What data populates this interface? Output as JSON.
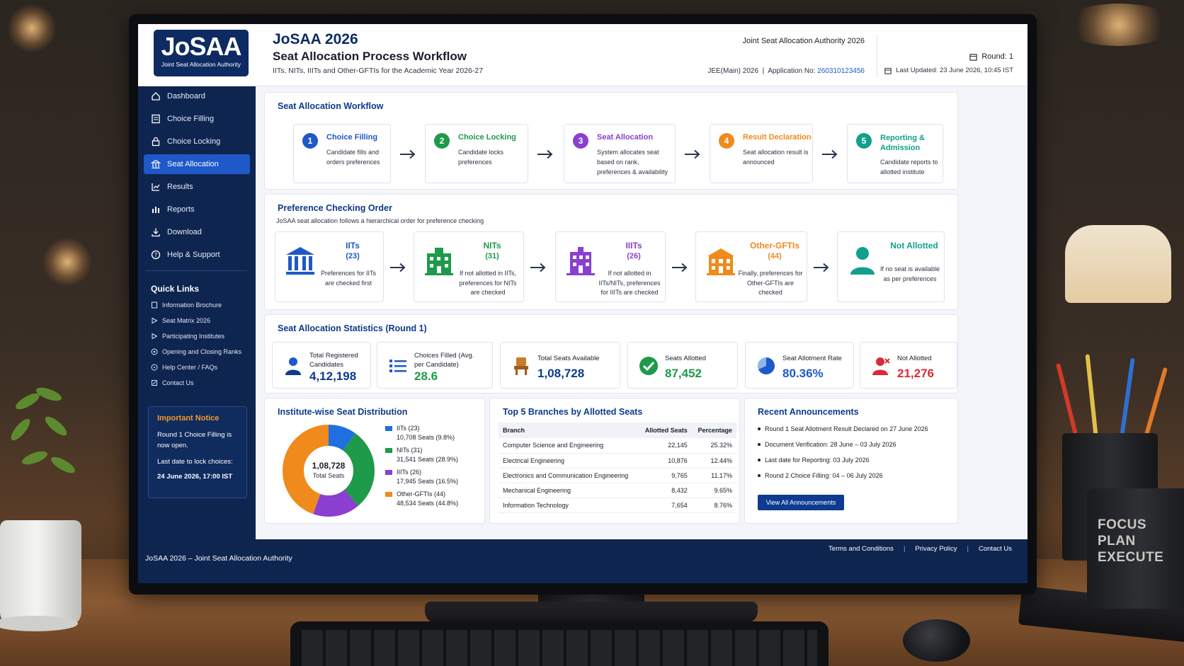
{
  "header": {
    "logo_title": "JoSAA",
    "logo_subtitle": "Joint Seat Allocation Authority",
    "title": "JoSAA 2026",
    "subtitle": "Seat Allocation Process Workflow",
    "description": "IITs, NITs, IIITs and Other-GFTIs for the Academic Year 2026-27",
    "authority": "Joint Seat Allocation Authority 2026",
    "exam_label": "JEE(Main) 2026",
    "app_label": "Application No:",
    "app_number": "260310123456",
    "round": "Round: 1",
    "last_updated": "Last Updated: 23 June 2026, 10:45 IST"
  },
  "sidebar": {
    "items": [
      {
        "label": "Dashboard",
        "icon": "home-icon"
      },
      {
        "label": "Choice Filling",
        "icon": "form-icon"
      },
      {
        "label": "Choice Locking",
        "icon": "lock-icon"
      },
      {
        "label": "Seat Allocation",
        "icon": "building-icon"
      },
      {
        "label": "Results",
        "icon": "chart-icon"
      },
      {
        "label": "Reports",
        "icon": "bar-chart-icon"
      },
      {
        "label": "Download",
        "icon": "download-icon"
      },
      {
        "label": "Help & Support",
        "icon": "help-icon"
      }
    ],
    "active_index": 3,
    "quick_links_title": "Quick Links",
    "quick_links": [
      "Information Brochure",
      "Seat Matrix 2026",
      "Participating Institutes",
      "Opening and Closing Ranks",
      "Help Center / FAQs",
      "Contact Us"
    ],
    "notice": {
      "title": "Important Notice",
      "body": "Round 1 Choice Filling is now open.",
      "deadline_label": "Last date to lock choices:",
      "deadline": "24 June 2026, 17:00 IST"
    }
  },
  "workflow": {
    "title": "Seat Allocation Workflow",
    "steps": [
      {
        "num": "1",
        "title": "Choice Filling",
        "desc": "Candidate fills and orders preferences",
        "color": "#1f58c8"
      },
      {
        "num": "2",
        "title": "Choice Locking",
        "desc": "Candidate locks preferences",
        "color": "#1e9a4a"
      },
      {
        "num": "3",
        "title": "Seat Allocation",
        "desc": "System allocates seat based on rank, preferences & availability",
        "color": "#8a3fd0"
      },
      {
        "num": "4",
        "title": "Result Declaration",
        "desc": "Seat allocation result is announced",
        "color": "#f08a1c"
      },
      {
        "num": "5",
        "title": "Reporting & Admission",
        "desc": "Candidate reports to allotted institute",
        "color": "#12a08c"
      }
    ]
  },
  "preference": {
    "title": "Preference Checking Order",
    "subtitle": "JoSAA seat allocation follows a hierarchical order for preference checking",
    "items": [
      {
        "title": "IITs",
        "count": "(23)",
        "desc": "Preferences for IITs are checked first",
        "color": "#1f58c8"
      },
      {
        "title": "NITs",
        "count": "(31)",
        "desc": "If not allotted in IITs, preferences for NITs are checked",
        "color": "#1e9a4a"
      },
      {
        "title": "IIITs",
        "count": "(26)",
        "desc": "If not allotted in IITs/NITs, preferences for IIITs are checked",
        "color": "#8a3fd0"
      },
      {
        "title": "Other-GFTIs",
        "count": "(44)",
        "desc": "Finally, preferences for Other-GFTIs are checked",
        "color": "#f08a1c"
      },
      {
        "title": "Not Allotted",
        "count": "",
        "desc": "If no seat is available as per preferences",
        "color": "#12a08c"
      }
    ]
  },
  "stats": {
    "title": "Seat Allocation Statistics (Round 1)",
    "items": [
      {
        "label": "Total Registered Candidates",
        "value": "4,12,198",
        "color": "#0d3a8a",
        "icon": "user-icon"
      },
      {
        "label": "Choices Filled (Avg. per Candidate)",
        "value": "28.6",
        "color": "#1e9a4a",
        "icon": "list-icon"
      },
      {
        "label": "Total Seats Available",
        "value": "1,08,728",
        "color": "#0d3a8a",
        "icon": "chair-icon"
      },
      {
        "label": "Seats Allotted",
        "value": "87,452",
        "color": "#1e9a4a",
        "icon": "check-circle-icon"
      },
      {
        "label": "Seat Allotment Rate",
        "value": "80.36%",
        "color": "#1f58c8",
        "icon": "pie-icon"
      },
      {
        "label": "Not Allotted",
        "value": "21,276",
        "color": "#d92b3a",
        "icon": "user-x-icon"
      }
    ]
  },
  "distribution": {
    "title": "Institute-wise Seat Distribution",
    "center_value": "1,08,728",
    "center_label": "Total Seats",
    "legend": [
      {
        "name": "IITs (23)",
        "detail": "10,708 Seats (9.8%)",
        "color": "#1f6fe0"
      },
      {
        "name": "NITs (31)",
        "detail": "31,541 Seats (28.9%)",
        "color": "#1e9a4a"
      },
      {
        "name": "IIITs (26)",
        "detail": "17,945 Seats (16.5%)",
        "color": "#8a3fd0"
      },
      {
        "name": "Other-GFTIs (44)",
        "detail": "48,534 Seats (44.8%)",
        "color": "#f08a1c"
      }
    ]
  },
  "chart_data": {
    "type": "pie",
    "categories": [
      "IITs (23)",
      "NITs (31)",
      "IIITs (26)",
      "Other-GFTIs (44)"
    ],
    "values": [
      10708,
      31541,
      17945,
      48534
    ],
    "percent": [
      9.8,
      28.9,
      16.5,
      44.8
    ],
    "title": "Institute-wise Seat Distribution",
    "legend": "right"
  },
  "branches": {
    "title": "Top  5 Branches by Allotted Seats",
    "headers": [
      "Branch",
      "Allotted Seats",
      "Percentage"
    ],
    "rows": [
      [
        "Computer Science and Engineering",
        "22,145",
        "25.32%"
      ],
      [
        "Electrical Engineering",
        "10,876",
        "12.44%"
      ],
      [
        "Electronics and Communication Engineering",
        "9,765",
        "11.17%"
      ],
      [
        "Mechanical Engineering",
        "8,432",
        "9.65%"
      ],
      [
        "Information Technology",
        "7,654",
        "8.76%"
      ]
    ]
  },
  "announcements": {
    "title": "Recent Announcements",
    "items": [
      "Round 1 Seat Allotment Result Declared on 27 June 2026",
      "Document Verification: 28 June – 03 July 2026",
      "Last date for Reporting: 03 July 2026",
      "Round 2 Choice Filling: 04 – 06 July 2026"
    ],
    "button": "View All Announcements"
  },
  "footer": {
    "left": "JoSAA 2026 – Joint Seat Allocation Authority",
    "links": [
      "Terms and Conditions",
      "Privacy Policy",
      "Contact Us"
    ]
  },
  "desk": {
    "mug_text": [
      "FOCUS",
      "PLAN",
      "EXECUTE"
    ]
  }
}
